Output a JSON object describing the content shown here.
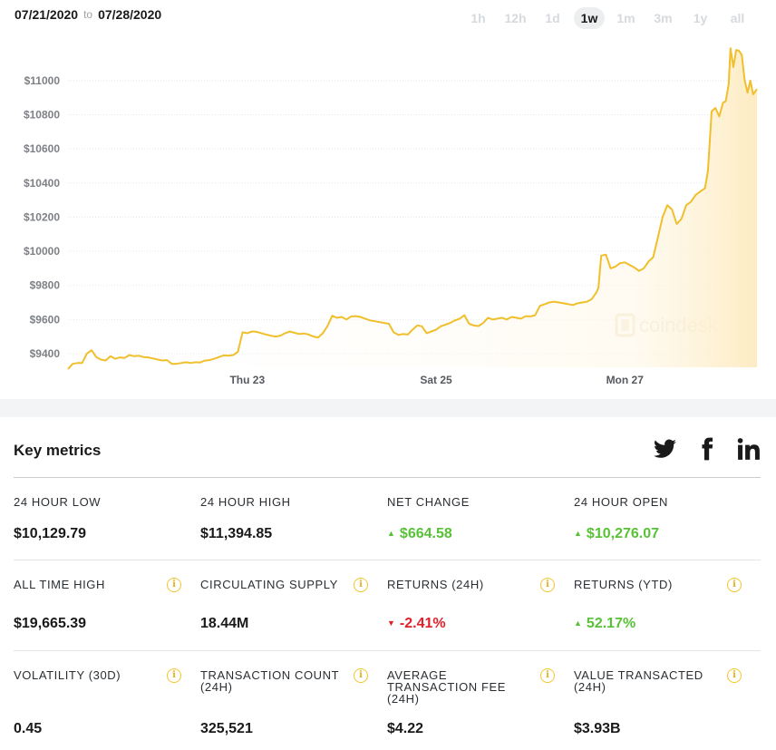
{
  "header": {
    "date_from": "07/21/2020",
    "date_sep": "to",
    "date_to": "07/28/2020",
    "tabs": [
      "1h",
      "12h",
      "1d",
      "1w",
      "1m",
      "3m",
      "1y",
      "all"
    ],
    "active_tab": "1w"
  },
  "watermark": "coindesk",
  "colors": {
    "line": "#f0bf2c",
    "fill": "#fdf1d3",
    "up": "#58c236",
    "down": "#e0202a",
    "info": "#f3c52b"
  },
  "chart_data": {
    "type": "area",
    "ylim": [
      9320,
      11260
    ],
    "y_ticks": [
      "$9400",
      "$9600",
      "$9800",
      "$10000",
      "$10200",
      "$10400",
      "$10600",
      "$10800",
      "$11000"
    ],
    "y_tick_values": [
      9400,
      9600,
      9800,
      10000,
      10200,
      10400,
      10600,
      10800,
      11000
    ],
    "x_range": [
      0,
      7
    ],
    "x_ticks": [
      "Thu 23",
      "Sat 25",
      "Mon 27"
    ],
    "x_tick_values": [
      1.9,
      3.9,
      5.9
    ],
    "grid": true,
    "series": [
      {
        "values": [
          [
            0.0,
            9310
          ],
          [
            0.05,
            9340
          ],
          [
            0.1,
            9345
          ],
          [
            0.15,
            9345
          ],
          [
            0.2,
            9400
          ],
          [
            0.25,
            9420
          ],
          [
            0.3,
            9380
          ],
          [
            0.35,
            9365
          ],
          [
            0.4,
            9360
          ],
          [
            0.45,
            9385
          ],
          [
            0.5,
            9370
          ],
          [
            0.55,
            9378
          ],
          [
            0.6,
            9375
          ],
          [
            0.65,
            9392
          ],
          [
            0.7,
            9385
          ],
          [
            0.75,
            9388
          ],
          [
            0.8,
            9380
          ],
          [
            0.85,
            9378
          ],
          [
            0.9,
            9372
          ],
          [
            0.95,
            9365
          ],
          [
            1.0,
            9360
          ],
          [
            1.05,
            9362
          ],
          [
            1.1,
            9340
          ],
          [
            1.15,
            9340
          ],
          [
            1.2,
            9345
          ],
          [
            1.25,
            9350
          ],
          [
            1.3,
            9345
          ],
          [
            1.35,
            9350
          ],
          [
            1.4,
            9348
          ],
          [
            1.45,
            9360
          ],
          [
            1.5,
            9362
          ],
          [
            1.55,
            9370
          ],
          [
            1.6,
            9380
          ],
          [
            1.65,
            9390
          ],
          [
            1.7,
            9388
          ],
          [
            1.75,
            9392
          ],
          [
            1.8,
            9410
          ],
          [
            1.85,
            9525
          ],
          [
            1.9,
            9520
          ],
          [
            1.95,
            9530
          ],
          [
            2.0,
            9528
          ],
          [
            2.05,
            9520
          ],
          [
            2.1,
            9512
          ],
          [
            2.15,
            9505
          ],
          [
            2.2,
            9500
          ],
          [
            2.25,
            9505
          ],
          [
            2.3,
            9520
          ],
          [
            2.35,
            9530
          ],
          [
            2.4,
            9522
          ],
          [
            2.45,
            9515
          ],
          [
            2.5,
            9518
          ],
          [
            2.55,
            9512
          ],
          [
            2.6,
            9500
          ],
          [
            2.65,
            9495
          ],
          [
            2.7,
            9520
          ],
          [
            2.75,
            9562
          ],
          [
            2.8,
            9622
          ],
          [
            2.85,
            9610
          ],
          [
            2.9,
            9615
          ],
          [
            2.95,
            9600
          ],
          [
            3.0,
            9618
          ],
          [
            3.05,
            9620
          ],
          [
            3.1,
            9615
          ],
          [
            3.15,
            9605
          ],
          [
            3.2,
            9595
          ],
          [
            3.25,
            9590
          ],
          [
            3.3,
            9585
          ],
          [
            3.35,
            9580
          ],
          [
            3.4,
            9575
          ],
          [
            3.45,
            9525
          ],
          [
            3.5,
            9510
          ],
          [
            3.55,
            9515
          ],
          [
            3.6,
            9512
          ],
          [
            3.65,
            9540
          ],
          [
            3.7,
            9565
          ],
          [
            3.75,
            9560
          ],
          [
            3.8,
            9520
          ],
          [
            3.85,
            9530
          ],
          [
            3.9,
            9540
          ],
          [
            3.95,
            9560
          ],
          [
            4.0,
            9570
          ],
          [
            4.05,
            9580
          ],
          [
            4.1,
            9595
          ],
          [
            4.15,
            9605
          ],
          [
            4.2,
            9625
          ],
          [
            4.25,
            9575
          ],
          [
            4.3,
            9565
          ],
          [
            4.35,
            9562
          ],
          [
            4.4,
            9580
          ],
          [
            4.45,
            9610
          ],
          [
            4.5,
            9600
          ],
          [
            4.55,
            9605
          ],
          [
            4.6,
            9610
          ],
          [
            4.65,
            9600
          ],
          [
            4.7,
            9615
          ],
          [
            4.75,
            9610
          ],
          [
            4.8,
            9605
          ],
          [
            4.85,
            9620
          ],
          [
            4.9,
            9618
          ],
          [
            4.95,
            9625
          ],
          [
            5.0,
            9680
          ],
          [
            5.05,
            9690
          ],
          [
            5.1,
            9700
          ],
          [
            5.15,
            9705
          ],
          [
            5.2,
            9700
          ],
          [
            5.25,
            9695
          ],
          [
            5.3,
            9690
          ],
          [
            5.35,
            9685
          ],
          [
            5.4,
            9695
          ],
          [
            5.45,
            9700
          ],
          [
            5.5,
            9705
          ],
          [
            5.55,
            9720
          ],
          [
            5.6,
            9760
          ],
          [
            5.62,
            9785
          ],
          [
            5.65,
            9975
          ],
          [
            5.7,
            9980
          ],
          [
            5.75,
            9900
          ],
          [
            5.8,
            9910
          ],
          [
            5.85,
            9930
          ],
          [
            5.9,
            9935
          ],
          [
            5.95,
            9920
          ],
          [
            6.0,
            9905
          ],
          [
            6.05,
            9885
          ],
          [
            6.1,
            9900
          ],
          [
            6.15,
            9940
          ],
          [
            6.2,
            9965
          ],
          [
            6.25,
            10080
          ],
          [
            6.3,
            10200
          ],
          [
            6.35,
            10270
          ],
          [
            6.4,
            10245
          ],
          [
            6.45,
            10160
          ],
          [
            6.5,
            10190
          ],
          [
            6.55,
            10270
          ],
          [
            6.6,
            10290
          ],
          [
            6.65,
            10330
          ],
          [
            6.7,
            10350
          ],
          [
            6.75,
            10370
          ],
          [
            6.78,
            10470
          ],
          [
            6.82,
            10820
          ],
          [
            6.86,
            10840
          ],
          [
            6.9,
            10790
          ],
          [
            6.94,
            10870
          ],
          [
            6.97,
            10880
          ],
          [
            7.0,
            10980
          ],
          [
            7.02,
            11190
          ],
          [
            7.05,
            11080
          ],
          [
            7.08,
            11180
          ],
          [
            7.11,
            11175
          ],
          [
            7.14,
            11150
          ],
          [
            7.17,
            11000
          ],
          [
            7.2,
            10930
          ],
          [
            7.23,
            11000
          ],
          [
            7.26,
            10920
          ],
          [
            7.3,
            10950
          ]
        ]
      }
    ]
  },
  "metrics": {
    "title": "Key metrics",
    "social": [
      "twitter-icon",
      "facebook-icon",
      "linkedin-icon"
    ],
    "rows": [
      [
        {
          "label": "24 HOUR LOW",
          "value": "$10,129.79",
          "trend": "none",
          "info": false
        },
        {
          "label": "24 HOUR HIGH",
          "value": "$11,394.85",
          "trend": "none",
          "info": false
        },
        {
          "label": "NET CHANGE",
          "value": "$664.58",
          "trend": "up",
          "info": false
        },
        {
          "label": "24 HOUR OPEN",
          "value": "$10,276.07",
          "trend": "up",
          "info": false
        }
      ],
      [
        {
          "label": "ALL TIME HIGH",
          "value": "$19,665.39",
          "trend": "none",
          "info": true
        },
        {
          "label": "CIRCULATING SUPPLY",
          "value": "18.44M",
          "trend": "none",
          "info": true
        },
        {
          "label": "RETURNS (24H)",
          "value": "-2.41%",
          "trend": "down",
          "info": true
        },
        {
          "label": "RETURNS (YTD)",
          "value": "52.17%",
          "trend": "up",
          "info": true
        }
      ],
      [
        {
          "label": "VOLATILITY (30D)",
          "value": "0.45",
          "trend": "none",
          "info": true
        },
        {
          "label": "TRANSACTION COUNT (24H)",
          "value": "325,521",
          "trend": "none",
          "info": true
        },
        {
          "label": "AVERAGE TRANSACTION FEE (24H)",
          "value": "$4.22",
          "trend": "none",
          "info": true
        },
        {
          "label": "VALUE TRANSACTED (24H)",
          "value": "$3.93B",
          "trend": "none",
          "info": true
        }
      ]
    ]
  }
}
